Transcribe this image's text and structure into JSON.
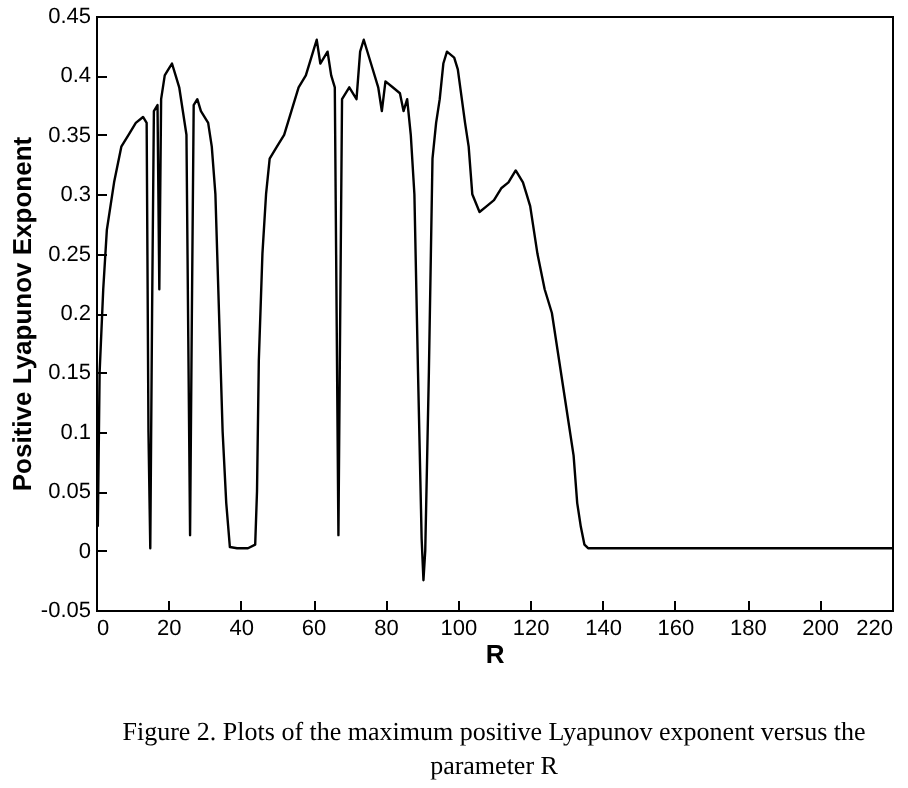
{
  "chart_data": {
    "type": "line",
    "xlabel": "R",
    "ylabel": "Positive Lyapunov Exponent",
    "annotations": [
      "Figure 2.     Plots of the maximum positive Lyapunov exponent versus the parameter R"
    ],
    "xlim": [
      0,
      220
    ],
    "xticks": [
      0,
      20,
      40,
      60,
      80,
      100,
      120,
      140,
      160,
      180,
      200,
      220
    ],
    "ylim": [
      -0.05,
      0.45
    ],
    "yticks": [
      -0.05,
      0,
      0.05,
      0.1,
      0.15,
      0.2,
      0.25,
      0.3,
      0.35,
      0.4,
      0.45
    ],
    "grid": false,
    "marker": "none",
    "line_style": "solid",
    "series": [
      {
        "color": "#000000",
        "x": [
          0.5,
          1,
          2,
          3,
          5,
          7,
          9,
          11,
          13,
          14,
          14.5,
          15,
          15.5,
          16,
          17,
          17.5,
          18,
          19,
          20,
          21,
          22,
          23,
          24,
          25,
          25.5,
          26,
          26.5,
          27,
          28,
          29,
          31,
          32,
          33,
          34,
          35,
          36,
          37,
          39,
          42,
          44,
          44.5,
          45,
          46,
          47,
          48,
          50,
          52,
          54,
          56,
          58,
          60,
          61,
          62,
          64,
          65,
          66,
          66.5,
          67,
          67.5,
          68,
          70,
          72,
          73,
          74,
          76,
          78,
          79,
          80,
          82,
          84,
          85,
          86,
          87,
          88,
          89,
          90,
          90.5,
          91,
          92,
          93,
          94,
          95,
          96,
          97,
          99,
          100,
          102,
          103,
          104,
          106,
          108,
          110,
          112,
          114,
          116,
          118,
          119,
          120,
          122,
          124,
          126,
          128,
          130,
          132,
          133,
          134,
          135,
          136,
          150,
          170,
          190,
          210,
          220
        ],
        "values": [
          0.02,
          0.15,
          0.22,
          0.27,
          0.31,
          0.34,
          0.35,
          0.36,
          0.365,
          0.36,
          0.1,
          0.002,
          0.2,
          0.37,
          0.375,
          0.22,
          0.38,
          0.4,
          0.405,
          0.41,
          0.4,
          0.39,
          0.37,
          0.35,
          0.18,
          0.013,
          0.2,
          0.375,
          0.38,
          0.37,
          0.36,
          0.34,
          0.3,
          0.2,
          0.1,
          0.04,
          0.003,
          0.002,
          0.002,
          0.005,
          0.05,
          0.16,
          0.25,
          0.3,
          0.33,
          0.34,
          0.35,
          0.37,
          0.39,
          0.4,
          0.42,
          0.43,
          0.41,
          0.42,
          0.4,
          0.39,
          0.2,
          0.013,
          0.2,
          0.38,
          0.39,
          0.38,
          0.42,
          0.43,
          0.41,
          0.39,
          0.37,
          0.395,
          0.39,
          0.385,
          0.37,
          0.38,
          0.35,
          0.3,
          0.15,
          0.01,
          -0.025,
          0,
          0.15,
          0.33,
          0.36,
          0.38,
          0.41,
          0.42,
          0.415,
          0.405,
          0.36,
          0.34,
          0.3,
          0.285,
          0.29,
          0.295,
          0.305,
          0.31,
          0.32,
          0.31,
          0.3,
          0.29,
          0.25,
          0.22,
          0.2,
          0.16,
          0.12,
          0.08,
          0.04,
          0.02,
          0.005,
          0.002,
          0.002,
          0.002,
          0.002,
          0.002,
          0.002
        ]
      }
    ]
  }
}
